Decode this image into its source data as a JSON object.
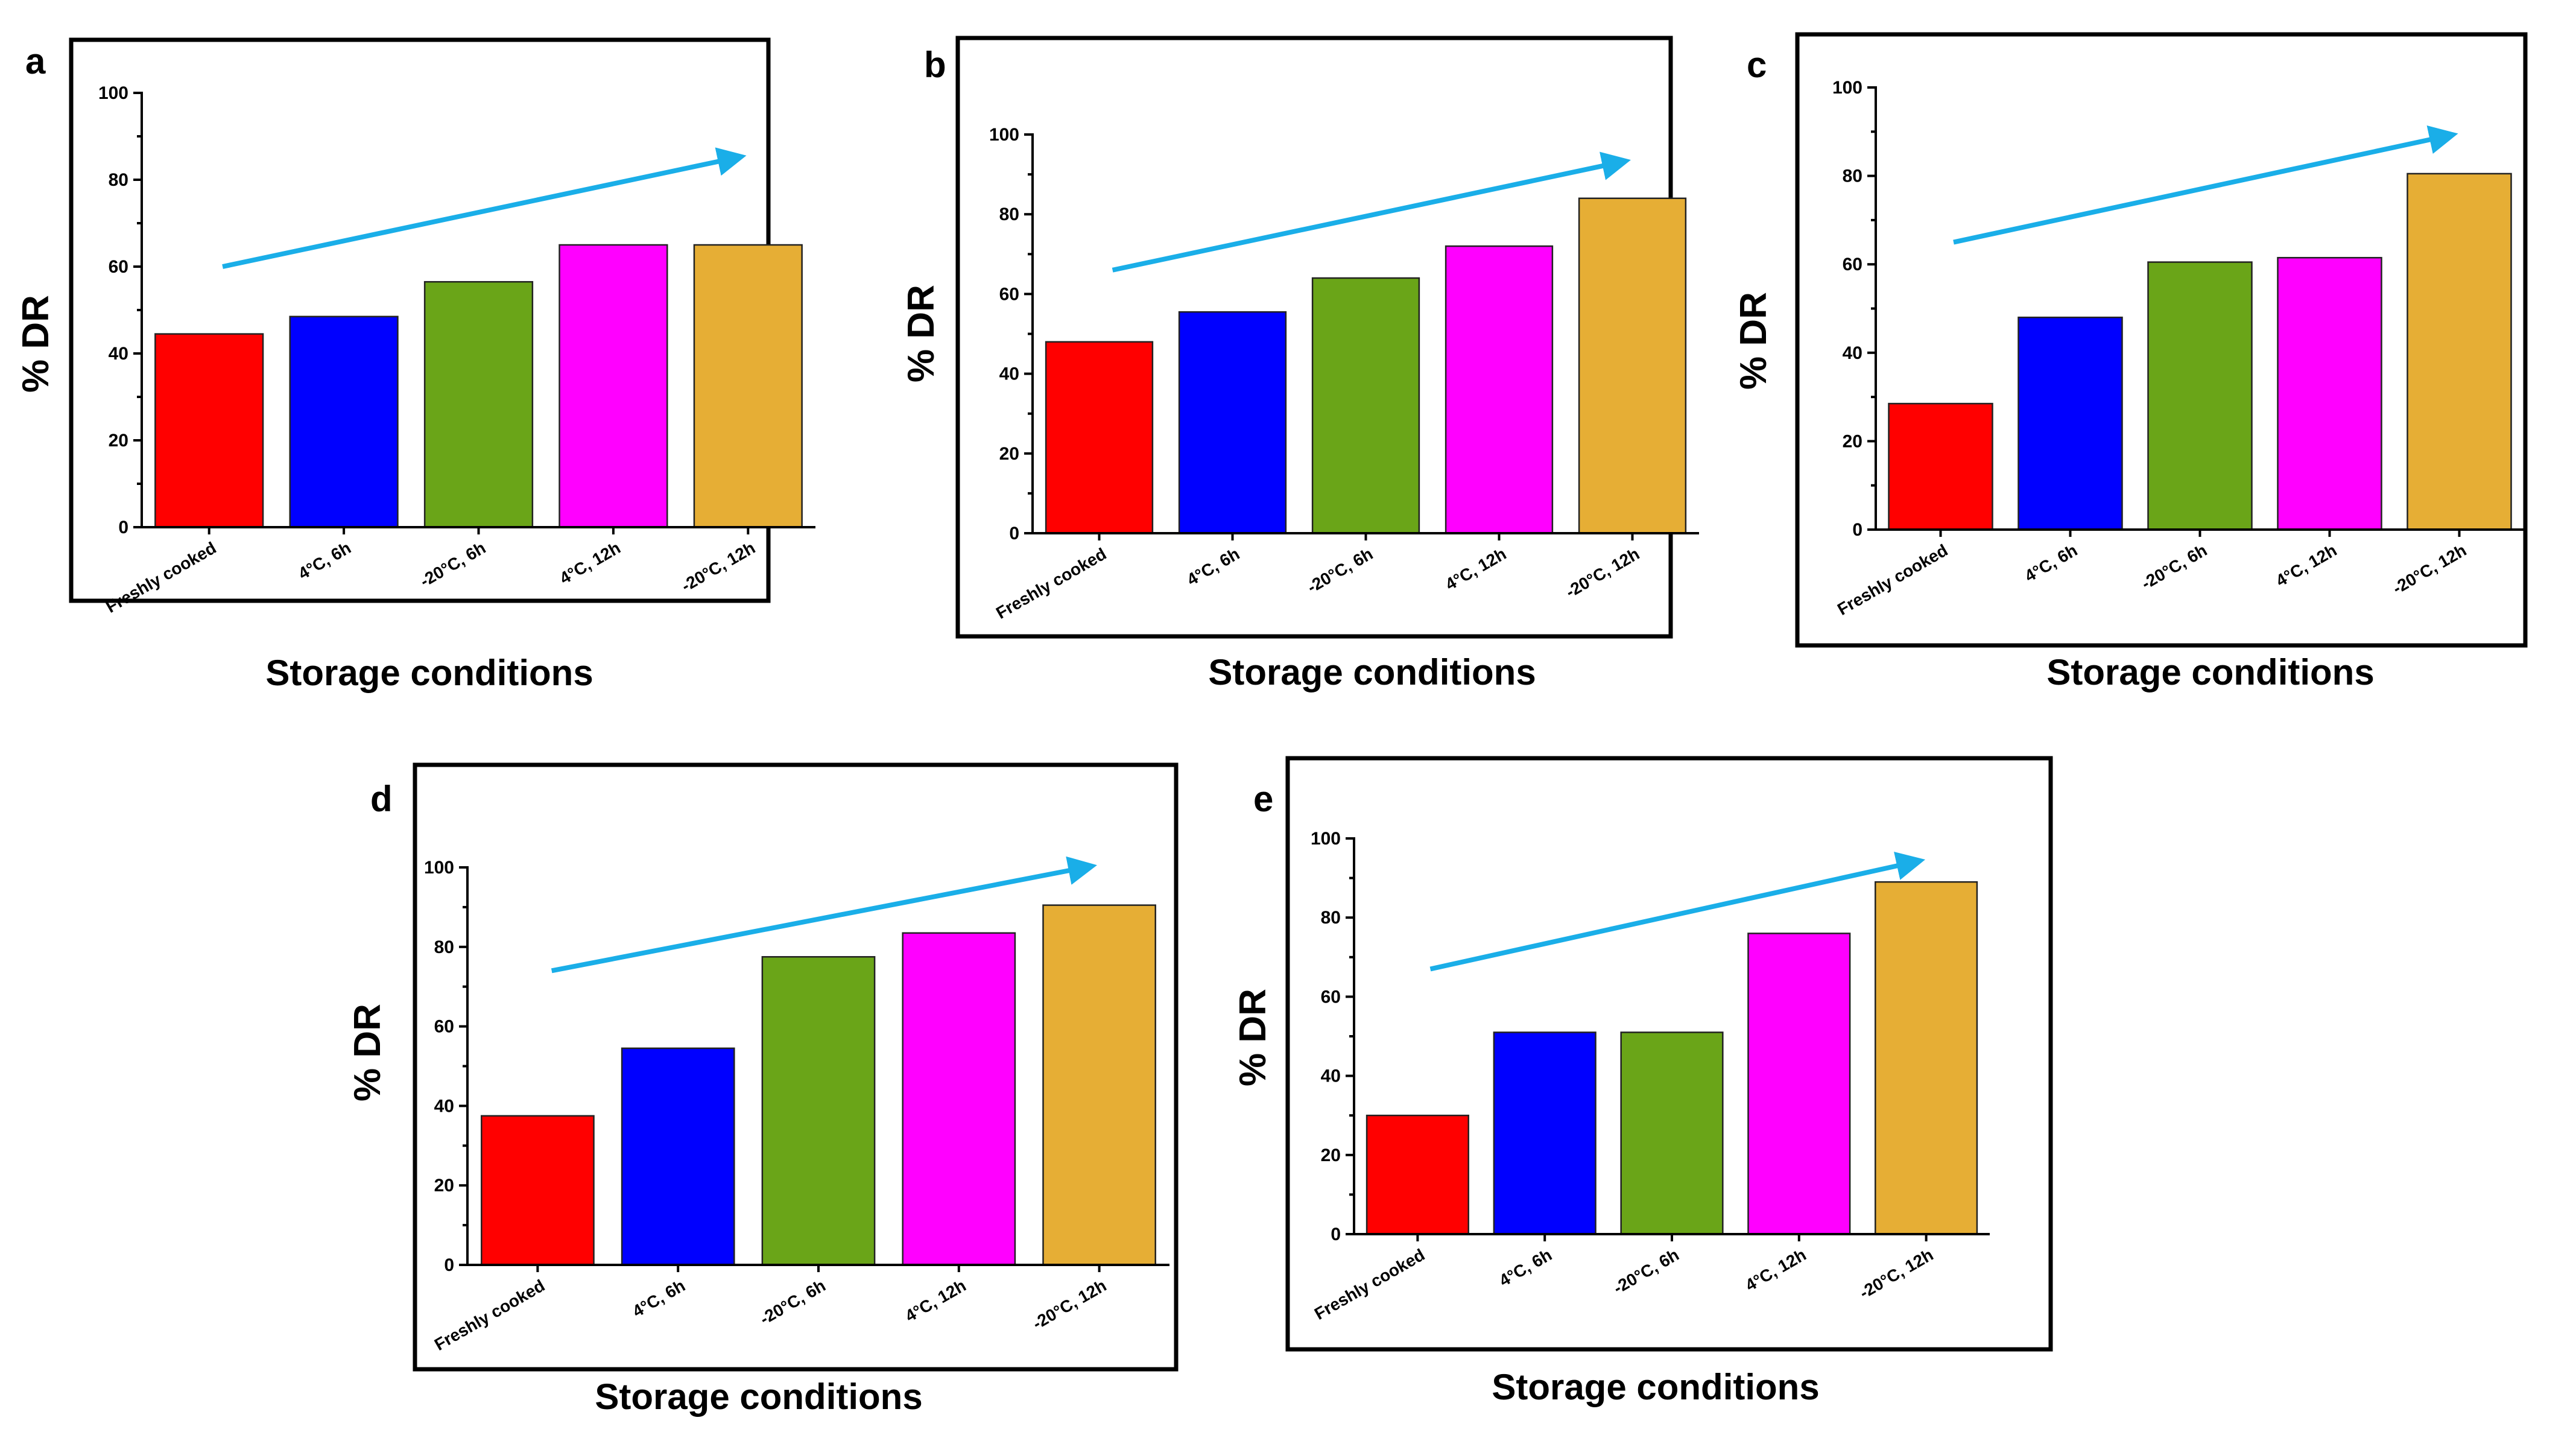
{
  "colors": {
    "Freshly cooked": "#FF0000",
    "4°C, 6h": "#0000FF",
    "-20°C, 6h": "#6AA518",
    "4°C, 12h": "#FF00FF",
    "-20°C, 12h": "#E6AE35",
    "trend_arrow": "#1AAEE8"
  },
  "chart_data": [
    {
      "panel": "a",
      "type": "bar",
      "categories": [
        "Freshly cooked",
        "4°C, 6h",
        "-20°C, 6h",
        "4°C, 12h",
        "-20°C, 12h"
      ],
      "values": [
        44.5,
        48.5,
        56.5,
        65,
        65
      ],
      "xlabel": "Storage conditions",
      "ylabel": "% DR",
      "ylim": [
        0,
        100
      ],
      "yticks": [
        "0",
        "20",
        "40",
        "60",
        "80",
        "100"
      ],
      "trend_arrow": {
        "from": [
          0.6,
          60
        ],
        "to": [
          4.4,
          85
        ]
      }
    },
    {
      "panel": "b",
      "type": "bar",
      "categories": [
        "Freshly cooked",
        "4°C, 6h",
        "-20°C, 6h",
        "4°C, 12h",
        "-20°C, 12h"
      ],
      "values": [
        48,
        55.5,
        64,
        72,
        84
      ],
      "xlabel": "Storage conditions",
      "ylabel": "% DR",
      "ylim": [
        0,
        100
      ],
      "yticks": [
        "0",
        "20",
        "40",
        "60",
        "80",
        "100"
      ],
      "trend_arrow": {
        "from": [
          0.6,
          66
        ],
        "to": [
          4.4,
          93
        ]
      }
    },
    {
      "panel": "c",
      "type": "bar",
      "categories": [
        "Freshly cooked",
        "4°C, 6h",
        "-20°C, 6h",
        "4°C, 12h",
        "-20°C, 12h"
      ],
      "values": [
        28.5,
        48,
        60.5,
        61.5,
        80.5
      ],
      "xlabel": "Storage conditions",
      "ylabel": "% DR",
      "ylim": [
        0,
        100
      ],
      "yticks": [
        "0",
        "20",
        "40",
        "60",
        "80",
        "100"
      ],
      "trend_arrow": {
        "from": [
          0.6,
          65
        ],
        "to": [
          4.4,
          89
        ]
      }
    },
    {
      "panel": "d",
      "type": "bar",
      "categories": [
        "Freshly cooked",
        "4°C, 6h",
        "-20°C, 6h",
        "4°C, 12h",
        "-20°C, 12h"
      ],
      "values": [
        37.5,
        54.5,
        77.5,
        83.5,
        90.5
      ],
      "xlabel": "Storage conditions",
      "ylabel": "% DR",
      "ylim": [
        0,
        100
      ],
      "yticks": [
        "0",
        "20",
        "40",
        "60",
        "80",
        "100"
      ],
      "trend_arrow": {
        "from": [
          0.6,
          74
        ],
        "to": [
          4.4,
          100
        ]
      }
    },
    {
      "panel": "e",
      "type": "bar",
      "categories": [
        "Freshly cooked",
        "4°C, 6h",
        "-20°C, 6h",
        "4°C, 12h",
        "-20°C, 12h"
      ],
      "values": [
        30,
        51,
        51,
        76,
        89
      ],
      "xlabel": "Storage conditions",
      "ylabel": "% DR",
      "ylim": [
        0,
        100
      ],
      "yticks": [
        "0",
        "20",
        "40",
        "60",
        "80",
        "100"
      ],
      "trend_arrow": {
        "from": [
          0.6,
          67
        ],
        "to": [
          4.4,
          94
        ]
      }
    }
  ]
}
